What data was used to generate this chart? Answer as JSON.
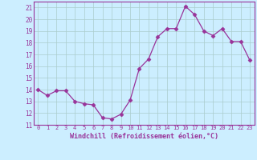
{
  "x": [
    0,
    1,
    2,
    3,
    4,
    5,
    6,
    7,
    8,
    9,
    10,
    11,
    12,
    13,
    14,
    15,
    16,
    17,
    18,
    19,
    20,
    21,
    22,
    23
  ],
  "y": [
    14.0,
    13.5,
    13.9,
    13.9,
    13.0,
    12.8,
    12.7,
    11.6,
    11.5,
    11.9,
    13.1,
    15.8,
    16.6,
    18.5,
    19.2,
    19.2,
    21.1,
    20.4,
    19.0,
    18.6,
    19.2,
    18.1,
    18.1,
    16.5
  ],
  "line_color": "#993399",
  "marker": "D",
  "marker_size": 2.5,
  "bg_color": "#cceeff",
  "grid_color": "#aacccc",
  "xlabel": "Windchill (Refroidissement éolien,°C)",
  "ylim": [
    11,
    21.5
  ],
  "yticks": [
    11,
    12,
    13,
    14,
    15,
    16,
    17,
    18,
    19,
    20,
    21
  ],
  "xticks": [
    0,
    1,
    2,
    3,
    4,
    5,
    6,
    7,
    8,
    9,
    10,
    11,
    12,
    13,
    14,
    15,
    16,
    17,
    18,
    19,
    20,
    21,
    22,
    23
  ],
  "xlim": [
    -0.5,
    23.5
  ]
}
